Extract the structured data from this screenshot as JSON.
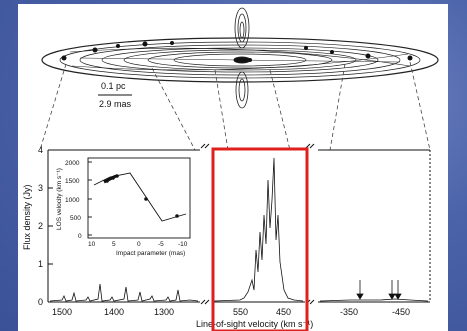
{
  "figure": {
    "disk": {
      "scale_pc": "0.1 pc",
      "scale_mas": "2.9 mas"
    },
    "main_panel": {
      "y_axis_label": "Flux density (Jy)",
      "x_axis_label": "Line-of-sight velocity (km s⁻¹)",
      "y_ticks": [
        "0",
        "1",
        "2",
        "3",
        "4"
      ],
      "x_ticks_left": [
        "1500",
        "1400",
        "1300"
      ],
      "x_ticks_middle": [
        "550",
        "450"
      ],
      "x_ticks_right": [
        "-350",
        "-450"
      ]
    },
    "inset": {
      "y_axis_label": "LOS velocity (km s⁻¹)",
      "x_axis_label": "Impact parameter (mas)",
      "y_ticks": [
        "2000",
        "1500",
        "1000",
        "500",
        "0"
      ],
      "x_ticks": [
        "10",
        "5",
        "0",
        "-5",
        "-10"
      ]
    },
    "highlight_color": "#e0201c",
    "accent_colors": {
      "slide_background": "#4a63a8",
      "figure_background": "#ffffff"
    }
  }
}
